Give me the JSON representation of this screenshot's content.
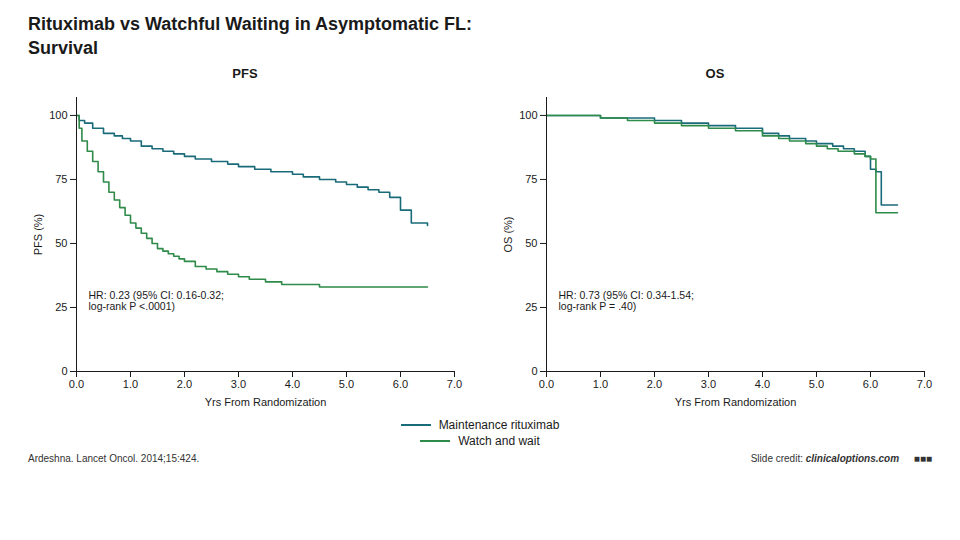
{
  "title": "Rituximab vs Watchful Waiting in Asymptomatic FL:\nSurvival",
  "footnotes": [
    "Ardeshna. Lancet Oncol. 2014;15:424.",
    "Slide credit:",
    "clinicaloptions.com",
    "■■■"
  ],
  "chart_data": [
    {
      "type": "line",
      "line_style": "step",
      "title": "PFS",
      "xlabel": "Yrs From Randomization",
      "ylabel": "PFS (%)",
      "annotation": "HR: 0.23 (95% CI: 0.16-0.32;\nlog-rank P <.0001)",
      "xlim": [
        0,
        7
      ],
      "ylim": [
        0,
        107
      ],
      "xticks": [
        0,
        1,
        2,
        3,
        4,
        5,
        6,
        7
      ],
      "yticks": [
        0,
        25,
        50,
        75,
        100
      ],
      "grid": false,
      "legend": "bottom",
      "series": [
        {
          "name": "Maintenance rituximab",
          "color": "#1a6b7a",
          "x": [
            0,
            0.05,
            0.15,
            0.3,
            0.5,
            0.7,
            0.85,
            1.0,
            1.2,
            1.4,
            1.6,
            1.8,
            2.0,
            2.2,
            2.5,
            2.8,
            3.0,
            3.3,
            3.6,
            3.8,
            4.0,
            4.2,
            4.5,
            4.8,
            5.0,
            5.2,
            5.4,
            5.6,
            5.8,
            6.0,
            6.2,
            6.5
          ],
          "values": [
            100,
            98,
            97,
            95,
            93,
            92,
            91,
            90,
            88,
            87,
            86,
            85,
            84,
            83,
            82,
            81,
            80,
            79,
            78,
            78,
            77,
            76,
            75,
            74,
            73,
            72,
            71,
            70,
            68,
            63,
            58,
            57
          ]
        },
        {
          "name": "Watch and wait",
          "color": "#2e8b4a",
          "x": [
            0,
            0.05,
            0.1,
            0.2,
            0.3,
            0.4,
            0.5,
            0.6,
            0.7,
            0.8,
            0.9,
            1.0,
            1.1,
            1.2,
            1.3,
            1.4,
            1.5,
            1.6,
            1.7,
            1.8,
            1.9,
            2.0,
            2.2,
            2.4,
            2.6,
            2.8,
            3.0,
            3.2,
            3.5,
            3.8,
            4.0,
            4.5,
            5.0,
            5.5,
            6.0,
            6.5
          ],
          "values": [
            100,
            95,
            90,
            86,
            82,
            78,
            74,
            70,
            67,
            64,
            61,
            58,
            56,
            54,
            52,
            50,
            48,
            47,
            46,
            45,
            44,
            43,
            41,
            40,
            39,
            38,
            37,
            36,
            35,
            34,
            34,
            33,
            33,
            33,
            33,
            33
          ]
        }
      ]
    },
    {
      "type": "line",
      "line_style": "step",
      "title": "OS",
      "xlabel": "Yrs From Randomization",
      "ylabel": "OS (%)",
      "annotation": "HR: 0.73 (95% CI: 0.34-1.54;\nlog-rank P = .40)",
      "xlim": [
        0,
        7
      ],
      "ylim": [
        0,
        107
      ],
      "xticks": [
        0,
        1,
        2,
        3,
        4,
        5,
        6,
        7
      ],
      "yticks": [
        0,
        25,
        50,
        75,
        100
      ],
      "grid": false,
      "legend": "bottom",
      "series": [
        {
          "name": "Maintenance rituximab",
          "color": "#1a6b7a",
          "x": [
            0,
            0.3,
            0.6,
            1.0,
            1.5,
            2.0,
            2.5,
            3.0,
            3.5,
            4.0,
            4.3,
            4.5,
            4.8,
            5.0,
            5.3,
            5.5,
            5.7,
            5.9,
            6.0,
            6.1,
            6.2,
            6.5
          ],
          "values": [
            100,
            100,
            100,
            99,
            99,
            98,
            97,
            96,
            95,
            93,
            92,
            91,
            90,
            89,
            88,
            87,
            86,
            84,
            79,
            78,
            65,
            65
          ]
        },
        {
          "name": "Watch and wait",
          "color": "#2e8b4a",
          "x": [
            0,
            0.5,
            1.0,
            1.5,
            2.0,
            2.5,
            3.0,
            3.5,
            4.0,
            4.3,
            4.5,
            4.8,
            5.0,
            5.2,
            5.4,
            5.7,
            5.9,
            6.0,
            6.1,
            6.3,
            6.5
          ],
          "values": [
            100,
            100,
            99,
            98,
            97,
            96,
            95,
            94,
            92,
            91,
            90,
            89,
            88,
            87,
            86,
            85,
            84,
            83,
            62,
            62,
            62
          ]
        }
      ]
    }
  ]
}
